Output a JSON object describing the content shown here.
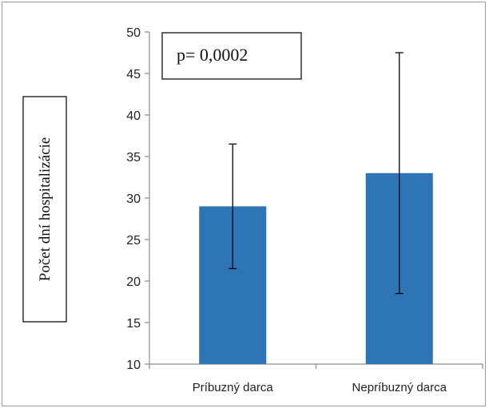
{
  "chart_data": {
    "type": "bar",
    "categories": [
      "Príbuzný darca",
      "Nepríbuzný darca"
    ],
    "values": [
      29,
      33
    ],
    "error_bars": [
      {
        "low": 21.5,
        "high": 36.5
      },
      {
        "low": 18.5,
        "high": 47.5
      }
    ],
    "ylabel": "Počet dní hospitalizácie",
    "ylim": [
      10,
      50
    ],
    "yticks": [
      10,
      15,
      20,
      25,
      30,
      35,
      40,
      45,
      50
    ],
    "annotation": "p= 0,0002",
    "bar_color": "#2E75B6",
    "grid": false,
    "legend": "none"
  }
}
